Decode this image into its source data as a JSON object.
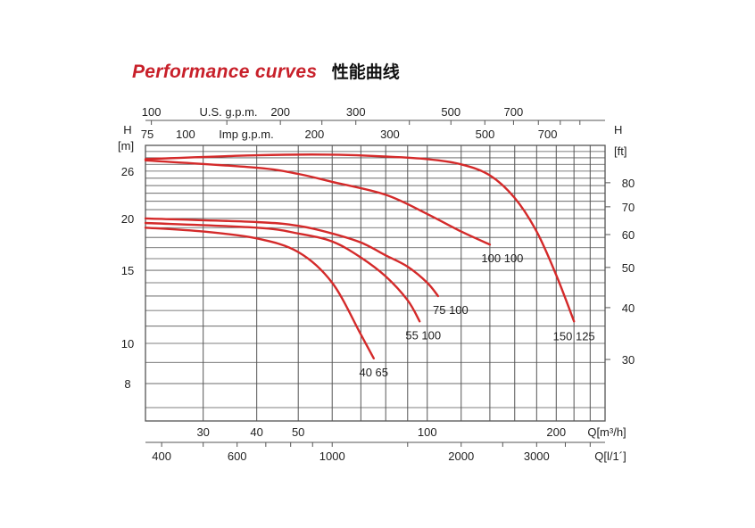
{
  "header": {
    "title": "Performance curves",
    "title_cn": "性能曲线"
  },
  "colors": {
    "curve": "#d42a2a",
    "grid": "#555555",
    "title": "#c8202a"
  },
  "chart_data": {
    "type": "line",
    "title": "Performance curves 性能曲线",
    "xlabel": "Q[m³/h]",
    "ylabel_left": "H [m]",
    "ylabel_right": "H [ft]",
    "xscale": "log",
    "yscale": "log",
    "xlim": [
      22,
      260
    ],
    "ylim": [
      6.5,
      30
    ],
    "grid": true,
    "y_ticks_m": [
      8,
      10,
      15,
      20,
      26
    ],
    "y_ticks_ft": [
      30,
      40,
      50,
      60,
      70,
      80
    ],
    "y_unit_left": "[m]",
    "y_unit_right": "[ft]",
    "h_label_left": "H",
    "h_label_right": "H",
    "x_ticks_m3h": [
      30,
      40,
      50,
      100,
      200
    ],
    "x_unit_m3h": "Q[m³/h]",
    "x_ticks_lmin": [
      400,
      600,
      1000,
      2000,
      3000
    ],
    "x_unit_lmin": "Q[l/1´]",
    "usgpm_ticks": [
      100,
      200,
      300,
      500,
      700
    ],
    "usgpm_label": "U.S. g.p.m.",
    "impgpm_ticks": [
      75,
      100,
      200,
      300,
      500,
      700
    ],
    "impgpm_label": "Imp g.p.m.",
    "series": [
      {
        "name": "40 65",
        "x": [
          22,
          30,
          40,
          50,
          60,
          70,
          75
        ],
        "y": [
          19.0,
          18.6,
          17.9,
          16.6,
          14.0,
          10.5,
          9.2
        ]
      },
      {
        "name": "55 100",
        "x": [
          22,
          40,
          50,
          60,
          70,
          80,
          90,
          96
        ],
        "y": [
          19.5,
          19.0,
          18.4,
          17.6,
          16.1,
          14.5,
          12.7,
          11.3
        ]
      },
      {
        "name": "75 100",
        "x": [
          22,
          40,
          50,
          60,
          70,
          80,
          90,
          100,
          106
        ],
        "y": [
          20.0,
          19.6,
          19.2,
          18.4,
          17.5,
          16.3,
          15.3,
          14.0,
          13.0
        ]
      },
      {
        "name": "100 100",
        "x": [
          22,
          40,
          50,
          60,
          80,
          100,
          120,
          140
        ],
        "y": [
          27.6,
          26.5,
          25.6,
          24.5,
          22.8,
          20.5,
          18.6,
          17.3
        ]
      },
      {
        "name": "150 125",
        "x": [
          22,
          40,
          60,
          80,
          100,
          120,
          140,
          160,
          180,
          200,
          220
        ],
        "y": [
          27.8,
          28.4,
          28.5,
          28.2,
          27.8,
          27.0,
          25.4,
          22.4,
          18.6,
          14.6,
          11.3
        ]
      }
    ]
  }
}
